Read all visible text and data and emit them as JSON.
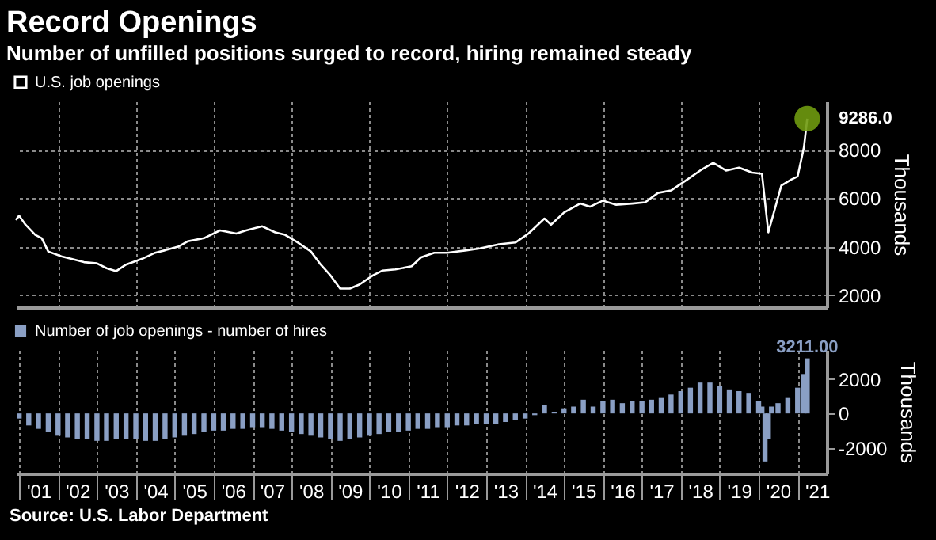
{
  "chart_data": [
    {
      "type": "line",
      "title": "Record Openings",
      "subtitle": "Number of unfilled positions surged to record, hiring remained steady",
      "ylabel": "Thousands",
      "legend": "top left",
      "grid": true,
      "tick_labels": "y",
      "xlim": [
        "2000-12",
        "2021-10"
      ],
      "ylim": [
        1500,
        10000
      ],
      "yticks": [
        2000,
        4000,
        6000,
        8000
      ],
      "xticks": [
        {
          "value": "2002",
          "label": null
        },
        {
          "value": "2004",
          "label": null
        },
        {
          "value": "2006",
          "label": null
        },
        {
          "value": "2008",
          "label": null
        },
        {
          "value": "2010",
          "label": null
        },
        {
          "value": "2012",
          "label": null
        },
        {
          "value": "2014",
          "label": null
        },
        {
          "value": "2016",
          "label": null
        },
        {
          "value": "2018",
          "label": null
        },
        {
          "value": "2020",
          "label": null
        }
      ],
      "x": [
        "2000-12",
        "2001-01",
        "2001-03",
        "2001-06",
        "2001-08",
        "2001-10",
        "2002-02",
        "2002-05",
        "2002-09",
        "2003-01",
        "2003-04",
        "2003-07",
        "2003-10",
        "2004-03",
        "2004-07",
        "2004-10",
        "2005-02",
        "2005-05",
        "2005-10",
        "2006-03",
        "2006-08",
        "2006-11",
        "2007-04",
        "2007-08",
        "2007-11",
        "2008-03",
        "2008-07",
        "2008-10",
        "2009-01",
        "2009-04",
        "2009-07",
        "2009-10",
        "2010-02",
        "2010-05",
        "2010-09",
        "2011-02",
        "2011-05",
        "2011-09",
        "2012-01",
        "2012-07",
        "2012-11",
        "2013-05",
        "2013-10",
        "2014-02",
        "2014-07",
        "2014-09",
        "2015-01",
        "2015-06",
        "2015-09",
        "2016-01",
        "2016-05",
        "2016-10",
        "2017-02",
        "2017-06",
        "2017-10",
        "2018-03",
        "2018-07",
        "2018-11",
        "2019-03",
        "2019-07",
        "2019-11",
        "2020-02",
        "2020-04",
        "2020-08",
        "2020-11",
        "2021-01",
        "2021-03",
        "2021-04"
      ],
      "series": [
        {
          "name": "U.S. job openings",
          "color": "#ffffff",
          "values": [
            5100,
            5280,
            4910,
            4490,
            4350,
            3800,
            3600,
            3500,
            3360,
            3310,
            3110,
            2990,
            3260,
            3500,
            3750,
            3850,
            4000,
            4220,
            4350,
            4670,
            4540,
            4670,
            4840,
            4590,
            4490,
            4170,
            3800,
            3260,
            2810,
            2270,
            2270,
            2440,
            2810,
            3010,
            3060,
            3190,
            3560,
            3750,
            3750,
            3850,
            3930,
            4100,
            4170,
            4540,
            5160,
            4910,
            5410,
            5780,
            5650,
            5900,
            5730,
            5780,
            5830,
            6220,
            6320,
            6770,
            7140,
            7460,
            7140,
            7260,
            7060,
            7010,
            4590,
            6520,
            6770,
            6900,
            8100,
            9286
          ],
          "value_labels": [
            null,
            null,
            null,
            null,
            null,
            null,
            null,
            null,
            null,
            null,
            null,
            null,
            null,
            null,
            null,
            null,
            null,
            null,
            null,
            null,
            null,
            null,
            null,
            null,
            null,
            null,
            null,
            null,
            null,
            null,
            null,
            null,
            null,
            null,
            null,
            null,
            null,
            null,
            null,
            null,
            null,
            null,
            null,
            null,
            null,
            null,
            null,
            null,
            null,
            null,
            null,
            null,
            null,
            null,
            null,
            null,
            null,
            null,
            null,
            null,
            null,
            null,
            null,
            null,
            null,
            null,
            null,
            "9286.0"
          ]
        }
      ]
    },
    {
      "type": "bar",
      "ylabel": "Thousands",
      "legend": "top left",
      "grid": "x",
      "annotations": [
        "Source: U.S. Labor Department"
      ],
      "xlim": [
        "2000-12",
        "2021-10"
      ],
      "ylim": [
        -3500,
        3700
      ],
      "yticks": [
        -2000,
        0,
        2000
      ],
      "xticks": [
        {
          "value": "2001",
          "label": null
        },
        {
          "value": "2001-07",
          "label": "'01"
        },
        {
          "value": "2002",
          "label": null
        },
        {
          "value": "2002-07",
          "label": "'02"
        },
        {
          "value": "2003",
          "label": null
        },
        {
          "value": "2003-07",
          "label": "'03"
        },
        {
          "value": "2004",
          "label": null
        },
        {
          "value": "2004-07",
          "label": "'04"
        },
        {
          "value": "2005",
          "label": null
        },
        {
          "value": "2005-07",
          "label": "'05"
        },
        {
          "value": "2006",
          "label": null
        },
        {
          "value": "2006-07",
          "label": "'06"
        },
        {
          "value": "2007",
          "label": null
        },
        {
          "value": "2007-07",
          "label": "'07"
        },
        {
          "value": "2008",
          "label": null
        },
        {
          "value": "2008-07",
          "label": "'08"
        },
        {
          "value": "2009",
          "label": null
        },
        {
          "value": "2009-07",
          "label": "'09"
        },
        {
          "value": "2010",
          "label": null
        },
        {
          "value": "2010-07",
          "label": "'10"
        },
        {
          "value": "2011",
          "label": null
        },
        {
          "value": "2011-07",
          "label": "'11"
        },
        {
          "value": "2012",
          "label": null
        },
        {
          "value": "2012-07",
          "label": "'12"
        },
        {
          "value": "2013",
          "label": null
        },
        {
          "value": "2013-07",
          "label": "'13"
        },
        {
          "value": "2014",
          "label": null
        },
        {
          "value": "2014-07",
          "label": "'14"
        },
        {
          "value": "2015",
          "label": null
        },
        {
          "value": "2015-07",
          "label": "'15"
        },
        {
          "value": "2016",
          "label": null
        },
        {
          "value": "2016-07",
          "label": "'16"
        },
        {
          "value": "2017",
          "label": null
        },
        {
          "value": "2017-07",
          "label": "'17"
        },
        {
          "value": "2018",
          "label": null
        },
        {
          "value": "2018-07",
          "label": "'18"
        },
        {
          "value": "2019",
          "label": null
        },
        {
          "value": "2019-07",
          "label": "'19"
        },
        {
          "value": "2020",
          "label": null
        },
        {
          "value": "2020-07",
          "label": "'20"
        },
        {
          "value": "2021",
          "label": null
        },
        {
          "value": "2021-07",
          "label": "'21"
        }
      ],
      "x": [
        "2001-01",
        "2001-04",
        "2001-07",
        "2001-10",
        "2002-01",
        "2002-04",
        "2002-07",
        "2002-10",
        "2003-01",
        "2003-04",
        "2003-07",
        "2003-10",
        "2004-01",
        "2004-04",
        "2004-07",
        "2004-10",
        "2005-01",
        "2005-04",
        "2005-07",
        "2005-10",
        "2006-01",
        "2006-04",
        "2006-07",
        "2006-10",
        "2007-01",
        "2007-04",
        "2007-07",
        "2007-10",
        "2008-01",
        "2008-04",
        "2008-07",
        "2008-10",
        "2009-01",
        "2009-04",
        "2009-07",
        "2009-10",
        "2010-01",
        "2010-04",
        "2010-07",
        "2010-10",
        "2011-01",
        "2011-04",
        "2011-07",
        "2011-10",
        "2012-01",
        "2012-04",
        "2012-07",
        "2012-10",
        "2013-01",
        "2013-04",
        "2013-07",
        "2013-10",
        "2014-01",
        "2014-04",
        "2014-07",
        "2014-10",
        "2015-01",
        "2015-04",
        "2015-07",
        "2015-10",
        "2016-01",
        "2016-04",
        "2016-07",
        "2016-10",
        "2017-01",
        "2017-04",
        "2017-07",
        "2017-10",
        "2018-01",
        "2018-04",
        "2018-07",
        "2018-10",
        "2019-01",
        "2019-04",
        "2019-07",
        "2019-10",
        "2020-01",
        "2020-02",
        "2020-03",
        "2020-04",
        "2020-05",
        "2020-07",
        "2020-10",
        "2021-01",
        "2021-03",
        "2021-04"
      ],
      "series": [
        {
          "name": "Number of job openings - number of hires",
          "color": "#8a9fc4",
          "values": [
            -300,
            -700,
            -900,
            -1100,
            -1300,
            -1400,
            -1500,
            -1500,
            -1600,
            -1600,
            -1500,
            -1500,
            -1500,
            -1600,
            -1600,
            -1500,
            -1400,
            -1300,
            -1200,
            -1100,
            -1000,
            -1000,
            -900,
            -900,
            -800,
            -800,
            -900,
            -1000,
            -1100,
            -1200,
            -1300,
            -1400,
            -1500,
            -1600,
            -1500,
            -1400,
            -1300,
            -1200,
            -1100,
            -1100,
            -1000,
            -900,
            -900,
            -800,
            -800,
            -700,
            -700,
            -600,
            -600,
            -600,
            -500,
            -400,
            -300,
            -100,
            500,
            100,
            300,
            400,
            800,
            400,
            700,
            800,
            600,
            700,
            700,
            800,
            900,
            1100,
            1300,
            1500,
            1800,
            1800,
            1600,
            1400,
            1300,
            1200,
            700,
            400,
            -2800,
            -1500,
            400,
            600,
            900,
            1500,
            2300,
            3211
          ],
          "value_labels": [
            null,
            null,
            null,
            null,
            null,
            null,
            null,
            null,
            null,
            null,
            null,
            null,
            null,
            null,
            null,
            null,
            null,
            null,
            null,
            null,
            null,
            null,
            null,
            null,
            null,
            null,
            null,
            null,
            null,
            null,
            null,
            null,
            null,
            null,
            null,
            null,
            null,
            null,
            null,
            null,
            null,
            null,
            null,
            null,
            null,
            null,
            null,
            null,
            null,
            null,
            null,
            null,
            null,
            null,
            null,
            null,
            null,
            null,
            null,
            null,
            null,
            null,
            null,
            null,
            null,
            null,
            null,
            null,
            null,
            null,
            null,
            null,
            null,
            null,
            null,
            null,
            null,
            null,
            null,
            null,
            null,
            null,
            null,
            null,
            null,
            "3211.00"
          ]
        }
      ]
    }
  ]
}
